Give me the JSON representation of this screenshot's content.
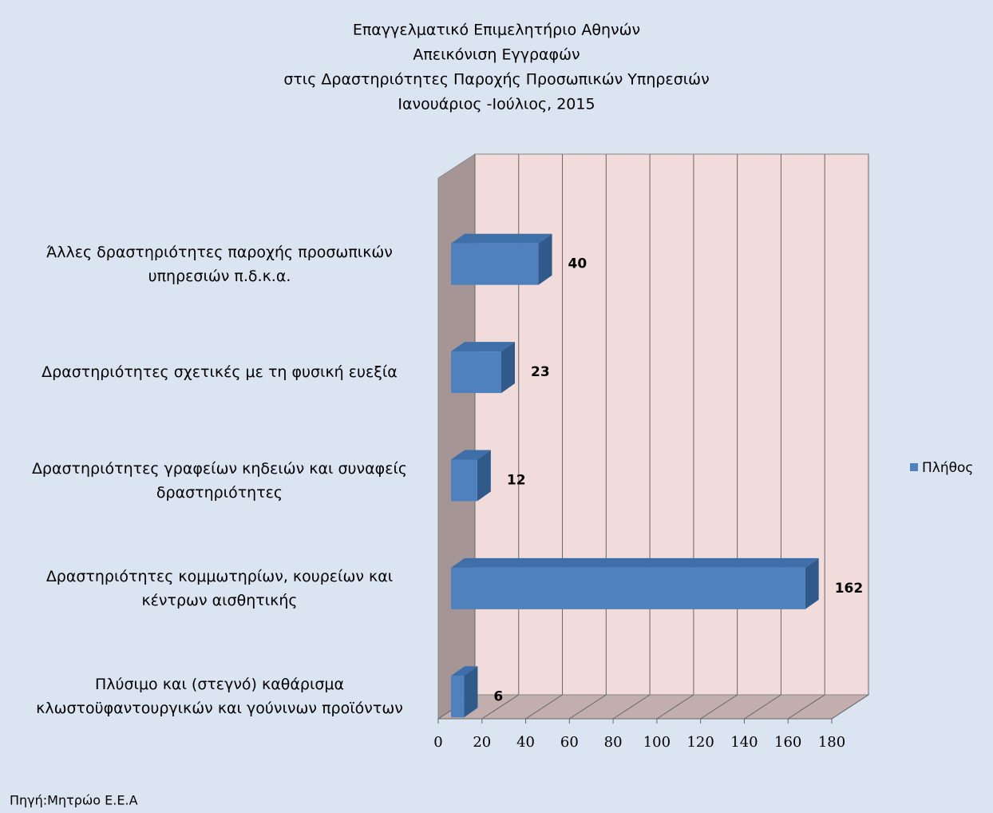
{
  "chart_data": {
    "type": "bar3d_horizontal",
    "title": [
      "Επαγγελματικό Επιμελητήριο Αθηνών",
      "Απεικόνιση Εγγραφών",
      "στις Δραστηριότητες Παροχής Προσωπικών Υπηρεσιών",
      "Ιανουάριος -Ιούλιος, 2015"
    ],
    "categories": [
      "Άλλες δραστηριότητες παροχής προσωπικών υπηρεσιών π.δ.κ.α.",
      "Δραστηριότητες σχετικές με τη φυσική ευεξία",
      "Δραστηριότητες γραφείων κηδειών και συναφείς δραστηριότητες",
      "Δραστηριότητες κομμωτηρίων, κουρείων και κέντρων αισθητικής",
      "Πλύσιμο και (στεγνό)  καθάρισμα κλωστοϋφαντουργικών και γούνινων προϊόντων"
    ],
    "series": [
      {
        "name": "Πλήθος",
        "color": "#4f81bd",
        "values": [
          40,
          23,
          12,
          162,
          6
        ]
      }
    ],
    "xlim": [
      0,
      180
    ],
    "xticks": [
      0,
      20,
      40,
      60,
      80,
      100,
      120,
      140,
      160,
      180
    ],
    "grid": true,
    "legend": "right",
    "source": "Πηγή:Μητρώο Ε.Ε.Α"
  }
}
